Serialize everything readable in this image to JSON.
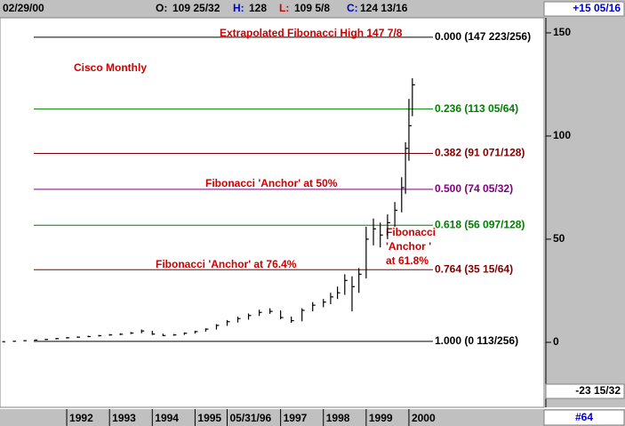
{
  "chart_data": {
    "type": "ohlc",
    "header": {
      "date": "02/29/00",
      "open_label": "O:",
      "open": "109 25/32",
      "high_label": "H:",
      "high": "128",
      "low_label": "L:",
      "low": "109 5/8",
      "close_label": "C:",
      "close": "124 13/16",
      "change": "+15 05/16"
    },
    "cursor_value": "-23 15/32",
    "chart_number": "#64",
    "x": [
      1990.5,
      1990.75,
      1991,
      1991.25,
      1991.5,
      1991.75,
      1992,
      1992.25,
      1992.5,
      1992.75,
      1993,
      1993.25,
      1993.5,
      1993.75,
      1994,
      1994.25,
      1994.5,
      1994.75,
      1995,
      1995.25,
      1995.5,
      1995.75,
      1996,
      1996.25,
      1996.5,
      1996.75,
      1997,
      1997.25,
      1997.5,
      1997.75,
      1998,
      1998.17,
      1998.33,
      1998.5,
      1998.67,
      1998.83,
      1999,
      1999.17,
      1999.33,
      1999.5,
      1999.67,
      1999.83,
      1999.92,
      2000,
      2000.08
    ],
    "high": [
      0.5,
      0.7,
      1.0,
      1.3,
      1.7,
      2.1,
      2.6,
      2.9,
      3.2,
      3.6,
      4.0,
      4.4,
      5.0,
      6.2,
      5.6,
      4.2,
      4.0,
      4.8,
      5.6,
      6.8,
      8.8,
      10.8,
      12.4,
      14.0,
      15.8,
      16.5,
      15.5,
      12.5,
      16.5,
      19.5,
      21,
      24,
      27,
      33,
      32,
      36,
      56,
      60,
      58,
      62,
      68,
      80,
      97,
      118,
      128
    ],
    "low": [
      0.2,
      0.3,
      0.5,
      0.8,
      1.1,
      1.4,
      1.8,
      2.2,
      2.5,
      2.8,
      3.2,
      3.5,
      4.0,
      4.4,
      3.6,
      3.0,
      3.2,
      3.6,
      4.3,
      5.2,
      6.2,
      8.0,
      9.6,
      11.0,
      12.8,
      13.8,
      11.2,
      9.5,
      10.2,
      15.0,
      17.0,
      18.5,
      21,
      23,
      15,
      24,
      31,
      47,
      46,
      50,
      56,
      63,
      72,
      88,
      109.625
    ],
    "close": [
      0.3,
      0.5,
      0.8,
      1.1,
      1.4,
      1.8,
      2.2,
      2.5,
      2.8,
      3.2,
      3.6,
      3.9,
      4.5,
      5.5,
      4.0,
      3.3,
      3.6,
      4.4,
      5.2,
      6.4,
      8.2,
      10.0,
      11.5,
      13.0,
      14.5,
      15.0,
      12.0,
      10.5,
      15.5,
      18.0,
      19.5,
      22,
      24,
      30,
      27,
      33,
      50,
      55,
      52,
      58,
      64,
      75,
      94,
      105,
      124.8125
    ],
    "color": "#000000",
    "xlim": [
      1990.44,
      2003.16
    ],
    "xticks": [
      {
        "value": 1992,
        "label": "1992"
      },
      {
        "value": 1993,
        "label": "1993"
      },
      {
        "value": 1994,
        "label": "1994"
      },
      {
        "value": 1995,
        "label": "1995"
      },
      {
        "value": 1995.75,
        "label": "05/31/96"
      },
      {
        "value": 1997,
        "label": "1997"
      },
      {
        "value": 1998,
        "label": "1998"
      },
      {
        "value": 1999,
        "label": "1999"
      },
      {
        "value": 2000,
        "label": "2000"
      }
    ],
    "ylim": [
      -31.5,
      157.3
    ],
    "yticks": [
      0,
      50,
      100,
      150
    ],
    "fib_levels": [
      {
        "value": 147.87,
        "label": "0.000 (147 223/256)",
        "color": "#000000"
      },
      {
        "value": 113.08,
        "label": "0.236 (113 05/64)",
        "color": "#008000"
      },
      {
        "value": 91.55,
        "label": "0.382 (91 071/128)",
        "color": "#800000"
      },
      {
        "value": 74.16,
        "label": "0.500 (74 05/32)",
        "color": "#800080"
      },
      {
        "value": 56.76,
        "label": "0.618 (56 097/128)",
        "color": "#008000"
      },
      {
        "value": 35.23,
        "label": "0.764 (35 15/64)",
        "color": "#800000"
      },
      {
        "value": 0.44,
        "label": "1.000 (0 113/256)",
        "color": "#000000"
      }
    ],
    "annotations": [
      {
        "lines": [
          "Extrapolated Fibonacci High 147 7/8"
        ]
      },
      {
        "lines": [
          "Cisco Monthly"
        ]
      },
      {
        "lines": [
          "Fibonacci 'Anchor' at 50%"
        ]
      },
      {
        "lines": [
          "Fibonacci 'Anchor' at 76.4%"
        ]
      },
      {
        "lines": [
          "Fibonacci",
          "'Anchor '",
          "at 61.8%"
        ]
      }
    ],
    "annotation_color": "#cc0000"
  }
}
